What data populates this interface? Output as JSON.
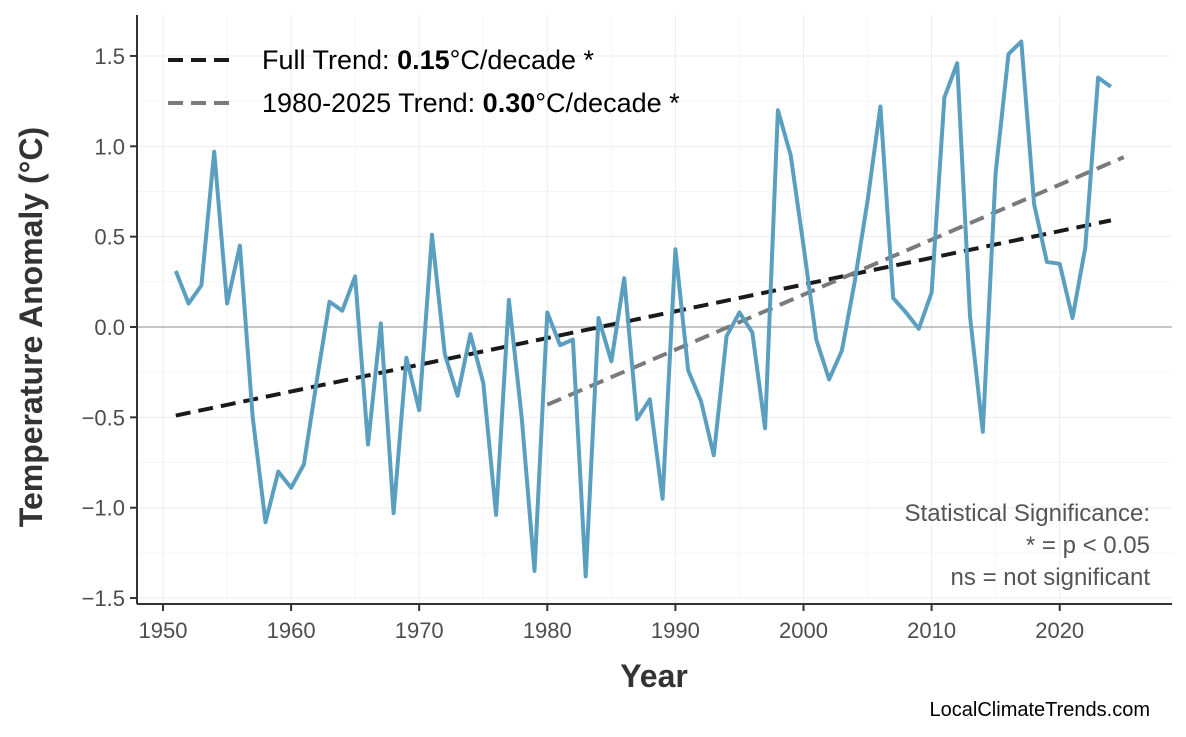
{
  "chart_data": {
    "type": "line",
    "xlabel": "Year",
    "ylabel": "Temperature Anomaly (°C)",
    "xlim": [
      1947,
      2029
    ],
    "ylim": [
      -1.55,
      1.7
    ],
    "x_ticks": [
      1950,
      1960,
      1970,
      1980,
      1990,
      2000,
      2010,
      2020
    ],
    "y_ticks": [
      -1.5,
      -1.0,
      -0.5,
      0.0,
      0.5,
      1.0,
      1.5
    ],
    "y_tick_labels": [
      "−1.5",
      "−1.0",
      "−0.5",
      "0.0",
      "0.5",
      "1.0",
      "1.5"
    ],
    "grid": true,
    "legend_position": "top-left",
    "series": [
      {
        "color": "#5a9fc0",
        "x": [
          1951,
          1952,
          1953,
          1954,
          1955,
          1956,
          1957,
          1958,
          1959,
          1960,
          1961,
          1962,
          1963,
          1964,
          1965,
          1966,
          1967,
          1968,
          1969,
          1970,
          1971,
          1972,
          1973,
          1974,
          1975,
          1976,
          1977,
          1978,
          1979,
          1980,
          1981,
          1982,
          1983,
          1984,
          1985,
          1986,
          1987,
          1988,
          1989,
          1990,
          1991,
          1992,
          1993,
          1994,
          1995,
          1996,
          1997,
          1998,
          1999,
          2000,
          2001,
          2002,
          2003,
          2004,
          2005,
          2006,
          2007,
          2008,
          2009,
          2010,
          2011,
          2012,
          2013,
          2014,
          2015,
          2016,
          2017,
          2018,
          2019,
          2020,
          2021,
          2022,
          2023,
          2024
        ],
        "y": [
          0.31,
          0.13,
          0.23,
          0.97,
          0.13,
          0.45,
          -0.5,
          -1.08,
          -0.8,
          -0.89,
          -0.76,
          -0.3,
          0.14,
          0.09,
          0.28,
          -0.65,
          0.02,
          -1.03,
          -0.17,
          -0.46,
          0.51,
          -0.15,
          -0.38,
          -0.04,
          -0.31,
          -1.04,
          0.15,
          -0.5,
          -1.35,
          0.08,
          -0.1,
          -0.07,
          -1.38,
          0.05,
          -0.19,
          0.27,
          -0.51,
          -0.4,
          -0.95,
          0.43,
          -0.24,
          -0.41,
          -0.71,
          -0.05,
          0.08,
          -0.03,
          -0.56,
          1.2,
          0.95,
          0.45,
          -0.07,
          -0.29,
          -0.13,
          0.25,
          0.7,
          1.22,
          0.16,
          0.08,
          -0.01,
          0.19,
          1.27,
          1.46,
          0.06,
          -0.58,
          0.85,
          1.51,
          1.58,
          0.68,
          0.36,
          0.35,
          0.05,
          0.44,
          1.38,
          1.33
        ]
      }
    ],
    "trends": [
      {
        "label_prefix": "Full Trend: ",
        "value": "0.15",
        "label_suffix": "°C/decade *",
        "color": "#1a1a1a",
        "x": [
          1951,
          2024
        ],
        "y": [
          -0.49,
          0.59
        ]
      },
      {
        "label_prefix": "1980-2025 Trend: ",
        "value": "0.30",
        "label_suffix": "°C/decade *",
        "color": "#7a7a7a",
        "x": [
          1980,
          2025
        ],
        "y": [
          -0.43,
          0.94
        ]
      }
    ],
    "annotation": [
      "Statistical Significance:",
      "* = p < 0.05",
      "ns = not significant"
    ],
    "source": "LocalClimateTrends.com"
  }
}
